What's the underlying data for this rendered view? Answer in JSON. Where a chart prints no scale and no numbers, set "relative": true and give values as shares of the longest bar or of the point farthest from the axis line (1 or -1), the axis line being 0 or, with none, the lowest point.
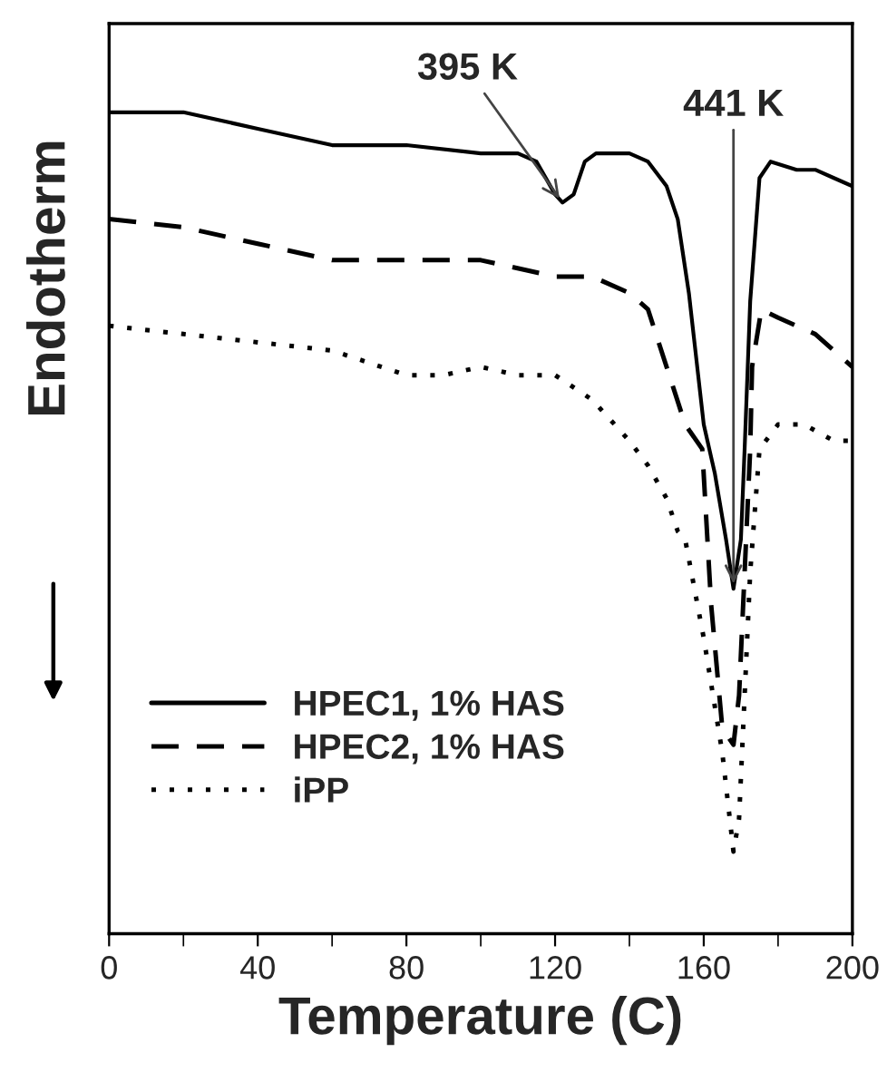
{
  "chart_data": {
    "type": "line",
    "relative": true,
    "xlabel": "Temperature (C)",
    "ylabel": "Endotherm",
    "xlim": [
      0,
      200
    ],
    "xticks": [
      0,
      40,
      80,
      120,
      160,
      200
    ],
    "legend": "bottom left",
    "grid": false,
    "annotations": [
      {
        "text": "395 K",
        "x": 122,
        "y": 0.89
      },
      {
        "text": "441 K",
        "x": 168,
        "y": 0.42
      }
    ],
    "series": [
      {
        "name": "HPEC1, 1% HAS",
        "color": "#000000",
        "line_style": "solid",
        "x": [
          0,
          20,
          40,
          60,
          80,
          100,
          110,
          115,
          120,
          122,
          125,
          128,
          131,
          140,
          145,
          150,
          153,
          156,
          160,
          163,
          166,
          168,
          170,
          171,
          172.5,
          175,
          178,
          185,
          190,
          195,
          200
        ],
        "values": [
          1.0,
          1.0,
          0.98,
          0.96,
          0.96,
          0.95,
          0.95,
          0.94,
          0.9,
          0.89,
          0.9,
          0.94,
          0.95,
          0.95,
          0.94,
          0.91,
          0.87,
          0.78,
          0.62,
          0.56,
          0.48,
          0.42,
          0.48,
          0.59,
          0.77,
          0.92,
          0.94,
          0.93,
          0.93,
          0.92,
          0.91
        ]
      },
      {
        "name": "HPEC2, 1% HAS",
        "color": "#000000",
        "line_style": "dashed",
        "x": [
          0,
          20,
          40,
          60,
          80,
          100,
          120,
          130,
          140,
          145,
          150,
          155,
          159.6,
          162,
          165,
          168,
          169.5,
          171,
          172.5,
          173,
          175.5,
          180,
          190,
          200
        ],
        "values": [
          0.87,
          0.86,
          0.84,
          0.82,
          0.82,
          0.82,
          0.8,
          0.8,
          0.78,
          0.76,
          0.69,
          0.62,
          0.59,
          0.4,
          0.25,
          0.23,
          0.29,
          0.44,
          0.59,
          0.69,
          0.76,
          0.75,
          0.73,
          0.69
        ]
      },
      {
        "name": "iPP",
        "color": "#000000",
        "line_style": "dotted",
        "x": [
          0,
          20,
          40,
          60,
          80,
          90,
          100,
          110,
          120,
          130,
          140,
          145,
          150,
          153,
          155,
          160,
          165,
          168,
          169.5,
          171,
          172.5,
          175,
          180,
          187,
          195,
          200
        ],
        "values": [
          0.74,
          0.73,
          0.72,
          0.71,
          0.68,
          0.68,
          0.69,
          0.68,
          0.68,
          0.65,
          0.6,
          0.57,
          0.53,
          0.49,
          0.48,
          0.36,
          0.22,
          0.1,
          0.14,
          0.29,
          0.44,
          0.59,
          0.62,
          0.62,
          0.6,
          0.6
        ]
      }
    ]
  }
}
